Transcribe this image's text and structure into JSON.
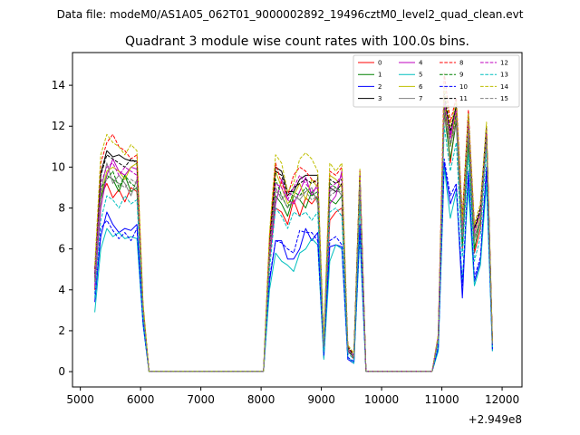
{
  "chart_data": {
    "type": "line",
    "suptitle": "Data file: modeM0/AS1A05_062T01_9000002892_19496cztM0_level2_quad_clean.evt",
    "title": "Quadrant 3 module wise count rates with 100.0s bins.",
    "xlabel": "",
    "ylabel": "",
    "x_offset_label": "+2.949e8",
    "xlim": [
      4870,
      12330
    ],
    "ylim": [
      -0.75,
      15.6
    ],
    "x_ticks": [
      5000,
      6000,
      7000,
      8000,
      9000,
      10000,
      11000,
      12000
    ],
    "y_ticks": [
      0,
      2,
      4,
      6,
      8,
      10,
      12,
      14
    ],
    "legend_position": "top-right",
    "x": [
      5240,
      5340,
      5440,
      5540,
      5640,
      5740,
      5840,
      5940,
      6040,
      6140,
      7040,
      8040,
      8140,
      8240,
      8340,
      8440,
      8540,
      8640,
      8740,
      8840,
      8940,
      9040,
      9140,
      9240,
      9340,
      9440,
      9540,
      9640,
      9740,
      10040,
      10840,
      10940,
      11040,
      11140,
      11240,
      11340,
      11440,
      11540,
      11640,
      11740,
      11840
    ],
    "series": [
      {
        "name": "0",
        "color": "#ff0000",
        "dashed": false,
        "values": [
          4.0,
          8.6,
          9.2,
          8.5,
          8.9,
          8.3,
          9.0,
          8.8,
          2.8,
          0.02,
          0.02,
          0.02,
          5.5,
          8.0,
          7.8,
          7.2,
          8.4,
          7.6,
          8.5,
          8.2,
          8.6,
          1.0,
          7.4,
          7.8,
          8.0,
          1.2,
          0.6,
          8.6,
          0.02,
          0.02,
          0.02,
          1.6,
          13.0,
          10.2,
          12.4,
          6.0,
          11.5,
          5.8,
          7.0,
          11.8,
          1.4
        ]
      },
      {
        "name": "1",
        "color": "#008000",
        "dashed": false,
        "values": [
          4.4,
          8.4,
          9.6,
          9.4,
          8.8,
          9.6,
          8.8,
          9.0,
          3.0,
          0.02,
          0.02,
          0.02,
          5.6,
          8.6,
          8.2,
          7.6,
          8.6,
          8.4,
          8.0,
          8.8,
          8.4,
          1.1,
          8.4,
          8.2,
          8.6,
          1.1,
          0.7,
          9.0,
          0.02,
          0.02,
          0.02,
          1.5,
          12.6,
          10.4,
          12.2,
          6.2,
          11.2,
          6.0,
          7.4,
          11.4,
          1.3
        ]
      },
      {
        "name": "2",
        "color": "#0000ff",
        "dashed": false,
        "values": [
          3.4,
          6.6,
          7.8,
          7.2,
          6.8,
          7.0,
          6.9,
          7.2,
          2.4,
          0.02,
          0.02,
          0.02,
          4.4,
          6.4,
          6.4,
          5.5,
          5.5,
          6.0,
          7.0,
          6.4,
          6.8,
          0.7,
          6.1,
          6.2,
          6.1,
          0.6,
          0.4,
          7.2,
          0.02,
          0.02,
          0.02,
          1.1,
          10.2,
          8.2,
          9.0,
          3.6,
          9.6,
          4.4,
          5.4,
          9.8,
          1.0
        ]
      },
      {
        "name": "3",
        "color": "#000000",
        "dashed": false,
        "values": [
          4.6,
          9.7,
          10.8,
          10.5,
          10.6,
          10.4,
          10.3,
          10.3,
          3.2,
          0.02,
          0.02,
          0.02,
          6.4,
          10.0,
          9.8,
          8.8,
          8.8,
          9.4,
          9.6,
          9.6,
          9.6,
          1.2,
          9.0,
          8.8,
          9.2,
          1.0,
          0.7,
          9.8,
          0.02,
          0.02,
          0.02,
          1.7,
          13.4,
          11.6,
          13.0,
          7.2,
          12.4,
          7.0,
          7.8,
          12.0,
          1.4
        ]
      },
      {
        "name": "4",
        "color": "#bf00bf",
        "dashed": false,
        "values": [
          4.2,
          8.0,
          9.6,
          10.4,
          9.8,
          9.6,
          10.0,
          9.9,
          3.0,
          0.02,
          0.02,
          0.02,
          5.6,
          8.2,
          9.4,
          8.4,
          8.2,
          8.8,
          9.5,
          8.6,
          9.2,
          1.2,
          8.2,
          8.6,
          9.8,
          1.0,
          0.8,
          9.4,
          0.02,
          0.02,
          0.02,
          1.6,
          12.8,
          11.4,
          12.6,
          6.6,
          12.0,
          6.6,
          7.4,
          11.8,
          1.4
        ]
      },
      {
        "name": "5",
        "color": "#00bfbf",
        "dashed": false,
        "values": [
          2.9,
          6.0,
          7.0,
          6.6,
          6.8,
          6.5,
          6.6,
          6.5,
          2.3,
          0.02,
          0.02,
          0.02,
          4.0,
          5.8,
          5.4,
          5.2,
          4.9,
          5.8,
          6.0,
          6.5,
          6.2,
          0.6,
          5.4,
          6.2,
          6.0,
          0.7,
          0.4,
          6.6,
          0.02,
          0.02,
          0.02,
          1.0,
          10.0,
          7.5,
          8.8,
          4.4,
          9.0,
          4.2,
          5.2,
          9.2,
          1.0
        ]
      },
      {
        "name": "6",
        "color": "#bfbf00",
        "dashed": false,
        "values": [
          4.6,
          8.6,
          9.8,
          10.0,
          9.8,
          9.4,
          10.0,
          10.2,
          3.2,
          0.02,
          0.02,
          0.02,
          6.0,
          9.8,
          9.0,
          8.2,
          8.6,
          9.2,
          8.4,
          9.4,
          9.0,
          1.4,
          9.6,
          9.4,
          9.0,
          1.1,
          0.8,
          9.6,
          0.02,
          0.02,
          0.02,
          1.7,
          13.4,
          11.0,
          12.8,
          7.0,
          11.8,
          6.8,
          7.6,
          11.6,
          1.4
        ]
      },
      {
        "name": "7",
        "color": "#808080",
        "dashed": false,
        "values": [
          4.5,
          8.8,
          10.2,
          9.2,
          9.6,
          9.2,
          8.6,
          9.4,
          3.0,
          0.02,
          0.02,
          0.02,
          5.8,
          9.0,
          8.4,
          8.8,
          8.6,
          8.4,
          8.8,
          9.0,
          8.2,
          1.2,
          8.8,
          9.0,
          8.6,
          1.1,
          0.7,
          9.4,
          0.02,
          0.02,
          0.02,
          1.6,
          12.4,
          11.2,
          12.0,
          6.8,
          11.6,
          6.6,
          7.4,
          11.2,
          1.3
        ]
      },
      {
        "name": "8",
        "color": "#ff0000",
        "dashed": true,
        "values": [
          5.0,
          10.2,
          11.2,
          11.6,
          11.0,
          10.8,
          10.4,
          10.6,
          3.3,
          0.02,
          0.02,
          0.02,
          6.6,
          10.2,
          9.2,
          8.6,
          9.6,
          10.0,
          9.8,
          9.4,
          9.2,
          1.4,
          9.8,
          9.6,
          10.0,
          1.3,
          0.8,
          9.8,
          0.02,
          0.02,
          0.02,
          1.8,
          14.6,
          12.2,
          13.4,
          7.6,
          12.8,
          7.2,
          8.2,
          12.0,
          1.5
        ]
      },
      {
        "name": "9",
        "color": "#008000",
        "dashed": true,
        "values": [
          4.6,
          9.0,
          9.4,
          9.8,
          9.0,
          9.6,
          9.2,
          9.0,
          3.0,
          0.02,
          0.02,
          0.02,
          5.8,
          9.4,
          8.6,
          8.0,
          8.8,
          8.6,
          9.0,
          8.6,
          8.8,
          1.2,
          9.2,
          9.0,
          8.8,
          1.1,
          0.7,
          9.2,
          0.02,
          0.02,
          0.02,
          1.6,
          13.0,
          11.0,
          12.6,
          6.8,
          11.8,
          6.4,
          7.4,
          11.6,
          1.4
        ]
      },
      {
        "name": "10",
        "color": "#0000ff",
        "dashed": true,
        "values": [
          3.8,
          7.0,
          7.4,
          6.9,
          6.5,
          6.8,
          6.4,
          7.0,
          2.4,
          0.02,
          0.02,
          0.02,
          4.6,
          6.4,
          6.3,
          6.0,
          5.8,
          6.9,
          6.8,
          6.8,
          6.4,
          0.8,
          6.4,
          6.6,
          6.2,
          0.7,
          0.5,
          7.0,
          0.02,
          0.02,
          0.02,
          1.2,
          10.4,
          8.6,
          9.2,
          4.2,
          9.8,
          4.6,
          5.6,
          10.0,
          1.1
        ]
      },
      {
        "name": "11",
        "color": "#000000",
        "dashed": true,
        "values": [
          4.8,
          9.6,
          10.6,
          10.4,
          10.2,
          10.0,
          10.4,
          10.2,
          3.2,
          0.02,
          0.02,
          0.02,
          6.2,
          9.8,
          9.6,
          8.6,
          9.0,
          9.2,
          9.4,
          9.2,
          9.4,
          1.3,
          9.4,
          9.2,
          9.4,
          1.2,
          0.8,
          9.6,
          0.02,
          0.02,
          0.02,
          1.7,
          13.6,
          11.8,
          13.0,
          7.4,
          12.6,
          7.0,
          8.0,
          12.0,
          1.4
        ]
      },
      {
        "name": "12",
        "color": "#bf00bf",
        "dashed": true,
        "values": [
          4.6,
          9.2,
          10.0,
          10.2,
          9.6,
          10.0,
          9.8,
          9.6,
          3.1,
          0.02,
          0.02,
          0.02,
          6.0,
          9.2,
          9.0,
          8.4,
          9.0,
          9.6,
          9.2,
          8.8,
          9.0,
          1.2,
          9.0,
          9.2,
          9.6,
          1.1,
          0.8,
          9.6,
          0.02,
          0.02,
          0.02,
          1.7,
          13.2,
          11.6,
          12.8,
          7.0,
          12.2,
          6.8,
          7.8,
          11.8,
          1.4
        ]
      },
      {
        "name": "13",
        "color": "#00bfbf",
        "dashed": true,
        "values": [
          3.6,
          7.4,
          8.6,
          8.4,
          8.0,
          8.6,
          8.2,
          8.4,
          2.8,
          0.02,
          0.02,
          0.02,
          5.0,
          8.0,
          7.6,
          7.0,
          7.8,
          7.6,
          7.8,
          7.4,
          7.8,
          1.0,
          7.8,
          8.0,
          7.6,
          0.9,
          0.6,
          8.2,
          0.02,
          0.02,
          0.02,
          1.4,
          12.0,
          9.8,
          11.2,
          5.6,
          10.6,
          5.4,
          6.6,
          10.8,
          1.2
        ]
      },
      {
        "name": "14",
        "color": "#bfbf00",
        "dashed": true,
        "values": [
          5.2,
          10.6,
          11.6,
          11.2,
          11.0,
          10.6,
          11.1,
          10.8,
          3.4,
          0.02,
          0.02,
          0.02,
          6.8,
          10.6,
          10.2,
          8.8,
          9.2,
          10.4,
          10.7,
          10.4,
          9.8,
          1.4,
          10.2,
          9.8,
          10.2,
          1.3,
          0.9,
          9.9,
          0.02,
          0.02,
          0.02,
          1.8,
          14.0,
          12.0,
          13.2,
          7.4,
          12.6,
          7.2,
          8.2,
          12.2,
          1.5
        ]
      },
      {
        "name": "15",
        "color": "#808080",
        "dashed": true,
        "values": [
          4.4,
          8.6,
          9.6,
          9.4,
          9.2,
          9.0,
          9.4,
          9.2,
          3.0,
          0.02,
          0.02,
          0.02,
          5.8,
          8.8,
          8.6,
          8.0,
          8.4,
          8.6,
          8.8,
          8.4,
          8.6,
          1.2,
          8.6,
          8.8,
          8.8,
          1.1,
          0.7,
          9.2,
          0.02,
          0.02,
          0.02,
          1.6,
          12.8,
          11.0,
          12.4,
          6.6,
          11.8,
          6.4,
          7.4,
          11.4,
          1.3
        ]
      }
    ]
  }
}
